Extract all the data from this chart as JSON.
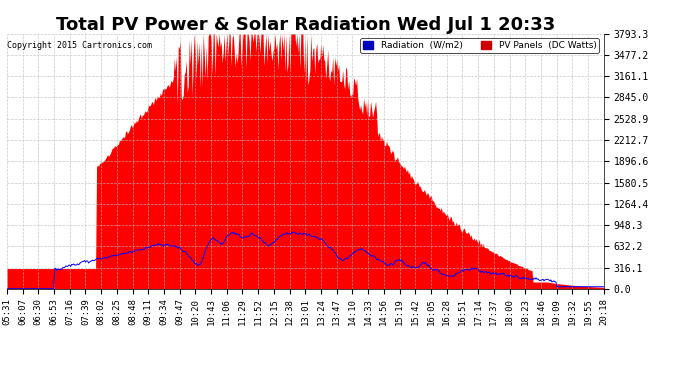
{
  "title": "Total PV Power & Solar Radiation Wed Jul 1 20:33",
  "copyright": "Copyright 2015 Cartronics.com",
  "ylabel_right_values": [
    3793.3,
    3477.2,
    3161.1,
    2845.0,
    2528.9,
    2212.7,
    1896.6,
    1580.5,
    1264.4,
    948.3,
    632.2,
    316.1,
    0.0
  ],
  "ymax": 3793.3,
  "ymin": 0.0,
  "pv_fill_color": "#ff0000",
  "radiation_line_color": "#0000ff",
  "background_color": "#ffffff",
  "grid_color": "#bbbbbb",
  "title_fontsize": 13,
  "tick_fontsize": 6.5,
  "x_tick_labels": [
    "05:31",
    "06:07",
    "06:30",
    "06:53",
    "07:16",
    "07:39",
    "08:02",
    "08:25",
    "08:48",
    "09:11",
    "09:34",
    "09:47",
    "10:20",
    "10:43",
    "11:06",
    "11:29",
    "11:52",
    "12:15",
    "12:38",
    "13:01",
    "13:24",
    "13:47",
    "14:10",
    "14:33",
    "14:56",
    "15:19",
    "15:42",
    "16:05",
    "16:28",
    "16:51",
    "17:14",
    "17:37",
    "18:00",
    "18:23",
    "18:46",
    "19:09",
    "19:32",
    "19:55",
    "20:18"
  ]
}
